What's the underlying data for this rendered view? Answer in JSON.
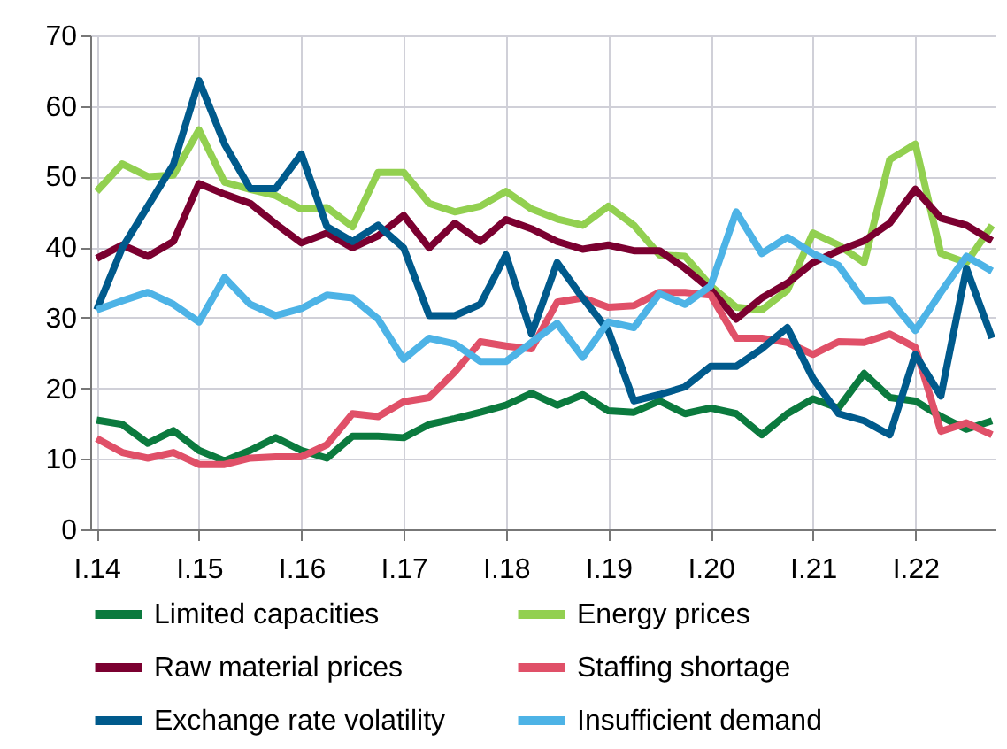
{
  "chart_data": {
    "type": "line",
    "categories": [
      "I.14",
      null,
      null,
      null,
      "I.15",
      null,
      null,
      null,
      "I.16",
      null,
      null,
      null,
      "I.17",
      null,
      null,
      null,
      "I.18",
      null,
      null,
      null,
      "I.19",
      null,
      null,
      null,
      "I.20",
      null,
      null,
      null,
      "I.21",
      null,
      null,
      null,
      "I.22",
      null,
      null,
      null
    ],
    "ylim": [
      0,
      70
    ],
    "yticks": [
      0,
      10,
      20,
      30,
      40,
      50,
      60,
      70
    ],
    "grid": true,
    "legend": "bottom",
    "marker": "none",
    "line_style": "solid",
    "series": [
      {
        "name": "Limited capacities",
        "color": "#0b7a3e",
        "values": [
          15.5,
          14.9,
          12.2,
          14,
          11.2,
          9.7,
          11.2,
          13,
          11.2,
          10.1,
          13.2,
          13.2,
          13,
          14.9,
          15.7,
          16.6,
          17.6,
          19.3,
          17.6,
          19.1,
          16.8,
          16.6,
          18.2,
          16.4,
          17.2,
          16.4,
          13.4,
          16.4,
          18.5,
          17.2,
          22.1,
          18.7,
          18.2,
          16,
          14.2,
          15.4
        ]
      },
      {
        "name": "Energy prices",
        "color": "#92d050",
        "values": [
          47.9,
          51.8,
          50,
          50.2,
          56.6,
          49.2,
          48.2,
          47.3,
          45.4,
          45.6,
          42.9,
          50.6,
          50.6,
          46.2,
          45,
          45.8,
          47.9,
          45.4,
          44,
          43.1,
          45.8,
          43.1,
          38.9,
          38.7,
          34.5,
          31.5,
          31.1,
          33.9,
          42,
          40.3,
          37.8,
          52.4,
          54.6,
          39.1,
          37.8,
          43.1
        ]
      },
      {
        "name": "Raw material prices",
        "color": "#7b0030",
        "values": [
          38.4,
          40.3,
          38.7,
          40.8,
          49,
          47.5,
          46.2,
          43.3,
          40.6,
          42,
          39.9,
          41.6,
          44.5,
          39.9,
          43.4,
          40.8,
          43.9,
          42.6,
          40.8,
          39.7,
          40.3,
          39.5,
          39.5,
          37,
          34,
          29.8,
          32.8,
          34.9,
          37.8,
          39.5,
          40.9,
          43.4,
          48.2,
          44.1,
          43.1,
          40.9
        ]
      },
      {
        "name": "Staffing shortage",
        "color": "#e05068",
        "values": [
          12.9,
          10.9,
          10.1,
          10.9,
          9.2,
          9.2,
          10.1,
          10.3,
          10.3,
          12,
          16.4,
          16,
          18.1,
          18.7,
          22.3,
          26.6,
          26,
          25.6,
          32.2,
          32.8,
          31.5,
          31.7,
          33.6,
          33.6,
          33.2,
          27.1,
          27.1,
          26.5,
          24.8,
          26.6,
          26.5,
          27.7,
          25.8,
          13.9,
          15.1,
          13.4
        ]
      },
      {
        "name": "Exchange rate volatility",
        "color": "#005a8c",
        "values": [
          31.1,
          39.9,
          45.8,
          51.7,
          63.6,
          54.6,
          48.3,
          48.3,
          53.2,
          42.9,
          40.8,
          43.1,
          39.9,
          30.3,
          30.3,
          31.9,
          38.9,
          27.7,
          37.8,
          32.8,
          28.2,
          18.2,
          19.1,
          20.2,
          23.1,
          23.1,
          25.6,
          28.6,
          21.4,
          16.4,
          15.4,
          13.4,
          24.8,
          18.9,
          37,
          27.1
        ]
      },
      {
        "name": "Insufficient demand",
        "color": "#4db3e6",
        "values": [
          31.1,
          32.4,
          33.6,
          31.9,
          29.4,
          35.7,
          31.9,
          30.3,
          31.3,
          33.2,
          32.8,
          29.8,
          24.1,
          27.1,
          26.3,
          23.8,
          23.8,
          26.5,
          29.2,
          24.4,
          29.4,
          28.6,
          33.4,
          31.9,
          34.5,
          45,
          39.1,
          41.4,
          39.1,
          37.4,
          32.4,
          32.6,
          28.2,
          33.6,
          38.7,
          36.6
        ]
      }
    ]
  }
}
